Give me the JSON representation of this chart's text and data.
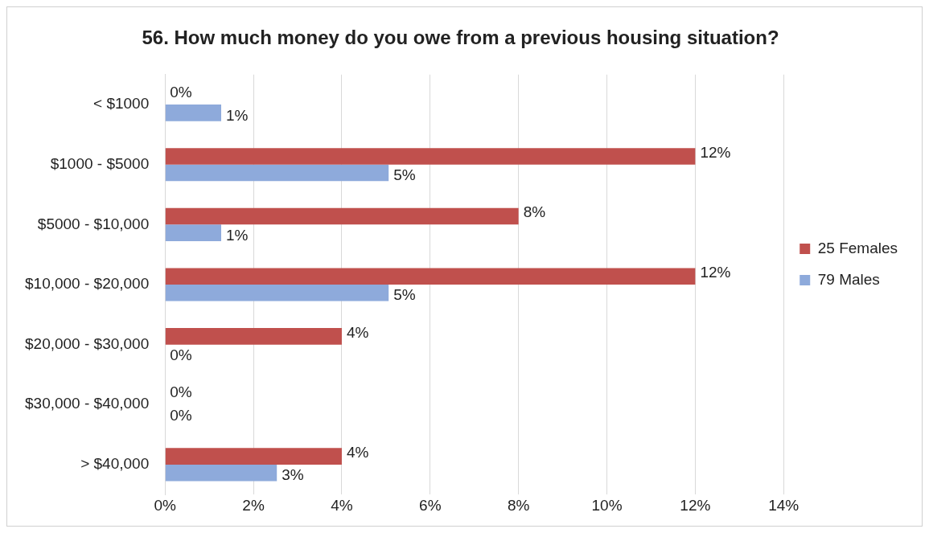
{
  "chart_data": {
    "type": "bar",
    "orientation": "horizontal",
    "title": "56. How much money do you owe from a previous housing situation?",
    "categories": [
      "< $1000",
      "$1000 - $5000",
      "$5000 - $10,000",
      "$10,000 - $20,000",
      "$20,000 - $30,000",
      "$30,000 - $40,000",
      "> $40,000"
    ],
    "series": [
      {
        "name": "25 Females",
        "color": "#c0504d",
        "values": [
          0,
          12,
          8,
          12,
          4,
          0,
          4
        ],
        "value_labels": [
          "0%",
          "12%",
          "8%",
          "12%",
          "4%",
          "0%",
          "4%"
        ]
      },
      {
        "name": "79 Males",
        "color": "#8eaadb",
        "values": [
          1.27,
          5.06,
          1.27,
          5.06,
          0,
          0,
          2.53
        ],
        "value_labels": [
          "1%",
          "5%",
          "1%",
          "5%",
          "0%",
          "0%",
          "3%"
        ]
      }
    ],
    "xlim": [
      0,
      14
    ],
    "xticks": [
      {
        "value": 0,
        "label": "0%"
      },
      {
        "value": 2,
        "label": "2%"
      },
      {
        "value": 4,
        "label": "4%"
      },
      {
        "value": 6,
        "label": "6%"
      },
      {
        "value": 8,
        "label": "8%"
      },
      {
        "value": 10,
        "label": "10%"
      },
      {
        "value": 12,
        "label": "12%"
      },
      {
        "value": 14,
        "label": "14%"
      }
    ],
    "grid": "x",
    "legend": "right"
  }
}
